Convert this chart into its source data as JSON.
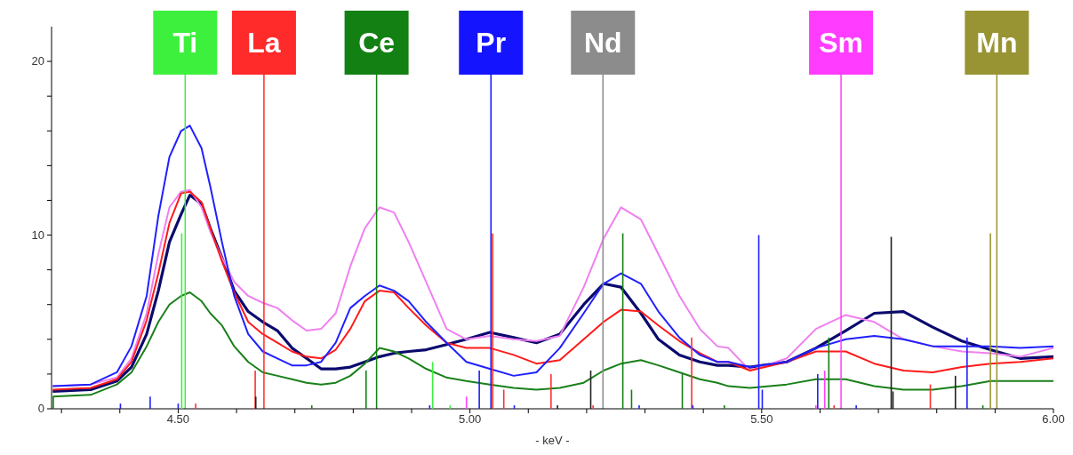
{
  "chart_data": {
    "type": "line",
    "xlabel": "- keV -",
    "x": [
      4.285,
      4.35,
      4.395,
      4.42,
      4.446,
      4.466,
      4.485,
      4.505,
      4.52,
      4.54,
      4.555,
      4.575,
      4.596,
      4.62,
      4.645,
      4.67,
      4.695,
      4.72,
      4.745,
      4.77,
      4.795,
      4.82,
      4.845,
      4.87,
      4.895,
      4.925,
      4.96,
      4.994,
      5.034,
      5.075,
      5.114,
      5.154,
      5.195,
      5.229,
      5.259,
      5.293,
      5.323,
      5.359,
      5.394,
      5.424,
      5.443,
      5.48,
      5.543,
      5.593,
      5.644,
      5.693,
      5.743,
      5.793,
      5.843,
      5.892,
      5.943,
      6.0
    ],
    "series": [
      {
        "color": "#0a0a6e",
        "values": [
          1.0,
          1.1,
          1.6,
          2.4,
          4.3,
          6.8,
          9.6,
          11.2,
          12.3,
          11.8,
          10.4,
          8.7,
          6.8,
          5.6,
          5.0,
          4.5,
          3.5,
          2.9,
          2.3,
          2.3,
          2.4,
          2.7,
          3.0,
          3.2,
          3.3,
          3.4,
          3.7,
          4.0,
          4.4,
          4.1,
          3.8,
          4.3,
          6.0,
          7.2,
          7.0,
          5.5,
          4.0,
          3.1,
          2.7,
          2.5,
          2.5,
          2.4,
          2.7,
          3.5,
          4.5,
          5.5,
          5.6,
          4.7,
          3.9,
          3.4,
          2.9,
          3.0
        ]
      },
      {
        "color": "#f080f0",
        "values": [
          1.3,
          1.4,
          1.8,
          2.9,
          5.5,
          8.9,
          11.6,
          12.5,
          12.6,
          11.6,
          10.2,
          8.7,
          7.3,
          6.5,
          6.1,
          5.8,
          5.1,
          4.5,
          4.6,
          5.5,
          8.2,
          10.4,
          11.6,
          11.3,
          9.6,
          7.3,
          4.6,
          4.0,
          4.2,
          4.0,
          3.9,
          4.2,
          7.0,
          9.8,
          11.6,
          10.9,
          8.9,
          6.5,
          4.6,
          3.6,
          3.5,
          2.2,
          2.9,
          4.6,
          5.4,
          5.0,
          4.0,
          3.6,
          3.3,
          3.2,
          3.0,
          3.5
        ]
      },
      {
        "color": "#ff1a1a",
        "values": [
          1.1,
          1.2,
          1.7,
          2.7,
          5.1,
          7.8,
          10.7,
          12.4,
          12.5,
          11.9,
          10.4,
          8.5,
          6.7,
          5.0,
          4.3,
          3.8,
          3.3,
          3.0,
          2.9,
          3.4,
          4.6,
          6.2,
          6.8,
          6.7,
          5.8,
          4.8,
          3.8,
          3.5,
          3.5,
          3.1,
          2.6,
          2.8,
          4.0,
          5.0,
          5.7,
          5.6,
          4.8,
          3.9,
          3.2,
          2.7,
          2.7,
          2.2,
          2.7,
          3.3,
          3.3,
          2.6,
          2.2,
          2.1,
          2.4,
          2.6,
          2.7,
          2.9
        ]
      },
      {
        "color": "#2020ff",
        "values": [
          1.3,
          1.4,
          2.1,
          3.6,
          6.5,
          11.1,
          14.5,
          16.0,
          16.3,
          15.0,
          12.8,
          9.6,
          6.5,
          4.3,
          3.3,
          2.9,
          2.5,
          2.5,
          2.7,
          3.8,
          5.8,
          6.5,
          7.1,
          6.8,
          6.2,
          5.0,
          3.8,
          2.7,
          2.3,
          1.9,
          2.1,
          3.5,
          5.5,
          7.2,
          7.8,
          7.2,
          5.6,
          4.1,
          3.1,
          2.7,
          2.7,
          2.4,
          2.7,
          3.5,
          4.0,
          4.2,
          4.0,
          3.6,
          3.6,
          3.6,
          3.5,
          3.6
        ]
      },
      {
        "color": "#1a801a",
        "values": [
          0.7,
          0.8,
          1.4,
          2.1,
          3.6,
          5.0,
          6.0,
          6.5,
          6.7,
          6.2,
          5.5,
          4.8,
          3.6,
          2.7,
          2.1,
          1.9,
          1.7,
          1.5,
          1.4,
          1.5,
          1.9,
          2.6,
          3.5,
          3.3,
          2.9,
          2.3,
          1.8,
          1.6,
          1.4,
          1.2,
          1.1,
          1.2,
          1.5,
          2.2,
          2.6,
          2.8,
          2.5,
          2.1,
          1.7,
          1.5,
          1.3,
          1.2,
          1.4,
          1.7,
          1.7,
          1.3,
          1.1,
          1.1,
          1.3,
          1.6,
          1.6,
          1.6
        ]
      },
      {
        "type": "bar",
        "x": [
          4.286,
          4.401,
          4.452,
          4.5,
          4.506,
          4.53,
          4.632,
          4.633,
          4.729,
          4.822,
          4.931,
          4.936,
          4.966,
          4.994,
          5.016,
          5.039,
          5.058,
          5.076,
          5.139,
          5.15,
          5.207,
          5.211,
          5.262,
          5.277,
          5.29,
          5.364,
          5.38,
          5.382,
          5.436,
          5.495,
          5.501,
          5.593,
          5.596,
          5.608,
          5.615,
          5.624,
          5.662,
          5.722,
          5.725,
          5.789,
          5.832,
          5.852,
          5.879,
          5.892
        ],
        "values": [
          0.7,
          0.3,
          0.7,
          0.3,
          10.1,
          0.3,
          2.2,
          0.7,
          0.2,
          2.2,
          0.2,
          2.7,
          0.2,
          0.7,
          2.2,
          10.1,
          1.1,
          0.2,
          2.0,
          0.2,
          2.2,
          0.2,
          10.1,
          1.1,
          0.2,
          2.0,
          4.1,
          0.2,
          0.2,
          10.0,
          1.1,
          0.2,
          2.0,
          2.2,
          4.1,
          0.2,
          0.2,
          9.9,
          1.0,
          1.4,
          1.9,
          4.1,
          0.2,
          10.1
        ],
        "colors": [
          "#138013",
          "#2020ff",
          "#2020ff",
          "#2020ff",
          "#3ef03e",
          "#ff3030",
          "#ff3030",
          "#202020",
          "#138013",
          "#138013",
          "#2020ff",
          "#3ef03e",
          "#3ef03e",
          "#ff40ff",
          "#2020ff",
          "#ff3030",
          "#ff3030",
          "#2020ff",
          "#ff3030",
          "#202020",
          "#202020",
          "#ff3030",
          "#138013",
          "#138013",
          "#2020ff",
          "#138013",
          "#ff3030",
          "#2020ff",
          "#138013",
          "#2020ff",
          "#2020ff",
          "#ff40ff",
          "#2020ff",
          "#ff40ff",
          "#138013",
          "#ff3030",
          "#2020ff",
          "#202020",
          "#202020",
          "#ff3030",
          "#202020",
          "#2020ff",
          "#138013",
          "#999433"
        ]
      }
    ],
    "ref_lines": [
      {
        "axis": "x",
        "value": 4.512,
        "label": "Ti",
        "color": "#3ef03e"
      },
      {
        "axis": "x",
        "value": 4.647,
        "label": "La",
        "color": "#ff2a2a"
      },
      {
        "axis": "x",
        "value": 4.84,
        "label": "Ce",
        "color": "#138013"
      },
      {
        "axis": "x",
        "value": 5.036,
        "label": "Pr",
        "color": "#1414ff"
      },
      {
        "axis": "x",
        "value": 5.228,
        "label": "Nd",
        "color": "#8c8c8c"
      },
      {
        "axis": "x",
        "value": 5.636,
        "label": "Sm",
        "color": "#ff3cff"
      },
      {
        "axis": "x",
        "value": 5.903,
        "label": "Mn",
        "color": "#999433"
      }
    ],
    "xlim": [
      4.283,
      6.0
    ],
    "xticks": [
      {
        "value": 4.3,
        "label": null
      },
      {
        "value": 4.4,
        "label": null
      },
      {
        "value": 4.5,
        "label": "4.50"
      },
      {
        "value": 4.6,
        "label": null
      },
      {
        "value": 4.7,
        "label": null
      },
      {
        "value": 4.8,
        "label": null
      },
      {
        "value": 4.9,
        "label": null
      },
      {
        "value": 5.0,
        "label": "5.00"
      },
      {
        "value": 5.1,
        "label": null
      },
      {
        "value": 5.2,
        "label": null
      },
      {
        "value": 5.3,
        "label": null
      },
      {
        "value": 5.4,
        "label": null
      },
      {
        "value": 5.5,
        "label": "5.50"
      },
      {
        "value": 5.6,
        "label": null
      },
      {
        "value": 5.7,
        "label": null
      },
      {
        "value": 5.8,
        "label": null
      },
      {
        "value": 5.9,
        "label": null
      },
      {
        "value": 6.0,
        "label": "6.00"
      }
    ],
    "ylim": [
      0,
      22
    ],
    "yticks": [
      0,
      {
        "value": 2,
        "label": null
      },
      {
        "value": 4,
        "label": null
      },
      {
        "value": 6,
        "label": null
      },
      {
        "value": 8,
        "label": null
      },
      10,
      {
        "value": 12,
        "label": null
      },
      {
        "value": 14,
        "label": null
      },
      {
        "value": 16,
        "label": null
      },
      {
        "value": 18,
        "label": null
      },
      20
    ]
  }
}
